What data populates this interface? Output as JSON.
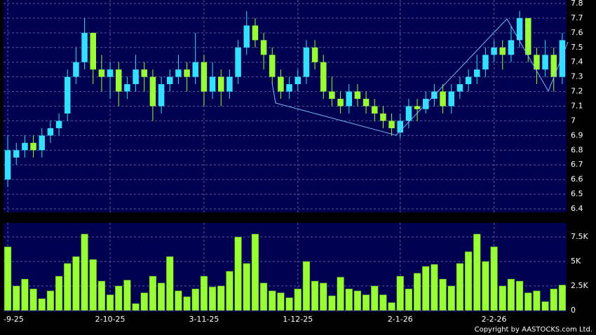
{
  "chart_data": [
    {
      "type": "candlestick",
      "up_color": "#33e0ff",
      "down_color": "#99ff33",
      "grid": true,
      "categories": [
        "-9-25",
        null,
        null,
        null,
        null,
        null,
        null,
        null,
        null,
        null,
        null,
        null,
        "2-10-25",
        null,
        null,
        null,
        null,
        null,
        null,
        null,
        null,
        null,
        null,
        "3-11-25",
        null,
        null,
        null,
        null,
        null,
        null,
        null,
        null,
        null,
        null,
        "1-12-25",
        null,
        null,
        null,
        null,
        null,
        null,
        null,
        null,
        null,
        null,
        null,
        "2-1-26",
        null,
        null,
        null,
        null,
        null,
        null,
        null,
        null,
        null,
        null,
        "2-2-26",
        null,
        null,
        null,
        null,
        null,
        null,
        null,
        null
      ],
      "open": [
        6.6,
        6.75,
        6.8,
        6.85,
        6.8,
        6.9,
        6.95,
        7.05,
        7.3,
        7.4,
        7.6,
        7.35,
        7.3,
        7.35,
        7.2,
        7.25,
        7.35,
        7.3,
        7.1,
        7.25,
        7.3,
        7.35,
        7.3,
        7.4,
        7.2,
        7.3,
        7.2,
        7.3,
        7.5,
        7.65,
        7.55,
        7.45,
        7.3,
        7.2,
        7.25,
        7.3,
        7.5,
        7.4,
        7.2,
        7.15,
        7.1,
        7.2,
        7.15,
        7.1,
        7.05,
        7.0,
        6.92,
        7.0,
        7.1,
        7.08,
        7.15,
        7.2,
        7.1,
        7.2,
        7.25,
        7.3,
        7.35,
        7.45,
        7.5,
        7.45,
        7.55,
        7.7,
        7.45,
        7.35,
        7.45,
        7.3
      ],
      "high": [
        6.9,
        6.85,
        6.9,
        6.9,
        6.95,
        7.0,
        7.05,
        7.35,
        7.5,
        7.7,
        7.6,
        7.45,
        7.4,
        7.4,
        7.3,
        7.45,
        7.4,
        7.35,
        7.3,
        7.35,
        7.45,
        7.4,
        7.6,
        7.45,
        7.4,
        7.35,
        7.35,
        7.55,
        7.75,
        7.7,
        7.6,
        7.5,
        7.35,
        7.3,
        7.35,
        7.55,
        7.55,
        7.45,
        7.3,
        7.2,
        7.25,
        7.25,
        7.2,
        7.15,
        7.1,
        7.05,
        7.05,
        7.15,
        7.15,
        7.2,
        7.25,
        7.25,
        7.25,
        7.3,
        7.35,
        7.45,
        7.5,
        7.55,
        7.55,
        7.65,
        7.75,
        7.7,
        7.5,
        7.55,
        7.5,
        7.6
      ],
      "low": [
        6.55,
        6.7,
        6.75,
        6.75,
        6.75,
        6.85,
        6.9,
        7.0,
        7.25,
        7.35,
        7.25,
        7.2,
        7.15,
        7.1,
        7.15,
        7.2,
        7.2,
        7.0,
        7.05,
        7.2,
        7.25,
        7.2,
        7.25,
        7.1,
        7.15,
        7.1,
        7.15,
        7.25,
        7.45,
        7.5,
        7.35,
        7.25,
        7.15,
        7.15,
        7.2,
        7.25,
        7.35,
        7.15,
        7.1,
        7.05,
        7.05,
        7.1,
        7.05,
        7.0,
        6.95,
        6.9,
        6.88,
        6.95,
        7.0,
        7.05,
        7.1,
        7.05,
        7.05,
        7.15,
        7.2,
        7.25,
        7.3,
        7.4,
        7.35,
        7.4,
        7.5,
        7.4,
        7.25,
        7.3,
        7.2,
        7.25
      ],
      "close": [
        6.8,
        6.8,
        6.85,
        6.8,
        6.9,
        6.95,
        7.0,
        7.3,
        7.4,
        7.6,
        7.35,
        7.3,
        7.35,
        7.2,
        7.25,
        7.35,
        7.3,
        7.1,
        7.25,
        7.3,
        7.35,
        7.3,
        7.4,
        7.2,
        7.3,
        7.2,
        7.3,
        7.5,
        7.65,
        7.55,
        7.45,
        7.3,
        7.2,
        7.25,
        7.3,
        7.5,
        7.4,
        7.2,
        7.15,
        7.1,
        7.2,
        7.15,
        7.1,
        7.05,
        7.0,
        6.95,
        7.0,
        7.1,
        7.08,
        7.15,
        7.2,
        7.1,
        7.2,
        7.25,
        7.3,
        7.35,
        7.45,
        7.5,
        7.45,
        7.55,
        7.7,
        7.45,
        7.35,
        7.45,
        7.3,
        7.55
      ],
      "ylim": [
        6.4,
        7.8
      ],
      "yticks": [
        6.4,
        6.5,
        6.6,
        6.7,
        6.8,
        6.9,
        7,
        7.1,
        7.2,
        7.3,
        7.4,
        7.5,
        7.6,
        7.7,
        7.8
      ]
    },
    {
      "type": "bar",
      "color": "#99ff33",
      "grid": true,
      "values": [
        6500,
        2500,
        3200,
        2200,
        1200,
        2000,
        3500,
        4800,
        5500,
        7800,
        5200,
        3000,
        1600,
        2500,
        3100,
        700,
        1800,
        3500,
        2800,
        5500,
        2000,
        1400,
        2200,
        3500,
        2400,
        2500,
        4000,
        7500,
        4800,
        7800,
        2800,
        2000,
        1800,
        1300,
        2200,
        5000,
        3000,
        2800,
        1500,
        3400,
        2200,
        2000,
        1600,
        2500,
        1600,
        800,
        3500,
        2200,
        3800,
        4500,
        4700,
        3200,
        2500,
        4800,
        6000,
        7800,
        5000,
        6500,
        2500,
        3200,
        3000,
        1800,
        2000,
        900,
        2200,
        2600
      ],
      "ylim": [
        0,
        8800
      ],
      "yticks": [
        0,
        {
          "value": 2500,
          "label": "2.5K"
        },
        {
          "value": 5000,
          "label": "5K"
        },
        {
          "value": 7500,
          "label": "7.5K"
        }
      ]
    }
  ],
  "footer": "Copyright by AASTOCKS.com Ltd."
}
